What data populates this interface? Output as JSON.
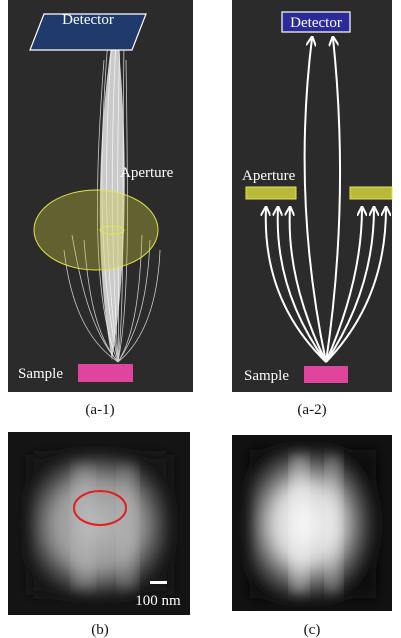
{
  "panel_a1": {
    "detector": "Detector",
    "aperture": "Aperture",
    "sample": "Sample",
    "caption": "(a-1)"
  },
  "panel_a2": {
    "detector": "Detector",
    "aperture": "Aperture",
    "sample": "Sample",
    "caption": "(a-2)"
  },
  "panel_b": {
    "scale_bar": "100 nm",
    "caption": "(b)"
  },
  "panel_c": {
    "caption": "(c)"
  }
}
